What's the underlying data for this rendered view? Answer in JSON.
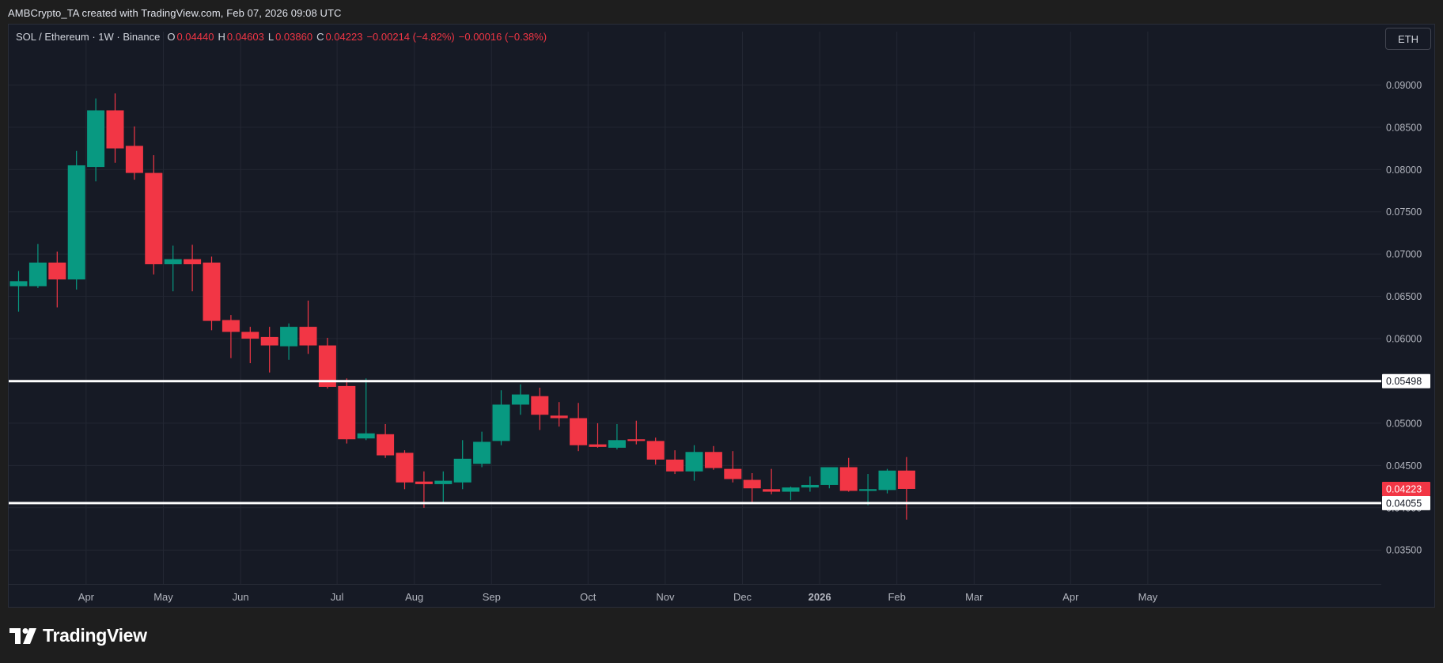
{
  "caption": "AMBCrypto_TA created with TradingView.com, Feb 07, 2026 09:08 UTC",
  "legend": {
    "symbol": "SOL / Ethereum · 1W · Binance",
    "open_label": "O",
    "open": "0.04440",
    "high_label": "H",
    "high": "0.04603",
    "low_label": "L",
    "low": "0.03860",
    "close_label": "C",
    "close": "0.04223",
    "change": "−0.00214 (−4.82%)",
    "change2": "−0.00016 (−0.38%)"
  },
  "currency_button": "ETH",
  "brand": "TradingView",
  "colors": {
    "background": "#161a25",
    "grid": "#232733",
    "up": "#089981",
    "down": "#f23645",
    "level_line": "#ffffff",
    "axis_text": "#b2b5be"
  },
  "chart_data": {
    "type": "candlestick",
    "interval": "1W",
    "ylim": [
      0.031,
      0.0935
    ],
    "y_ticks": [
      "0.03500",
      "0.04000",
      "0.04500",
      "0.05000",
      "0.05500",
      "0.06000",
      "0.06500",
      "0.07000",
      "0.07500",
      "0.08000",
      "0.08500",
      "0.09000"
    ],
    "y_tick_values": [
      0.035,
      0.04,
      0.045,
      0.05,
      0.055,
      0.06,
      0.065,
      0.07,
      0.075,
      0.08,
      0.085,
      0.09
    ],
    "x_ticks": [
      {
        "label": "Apr",
        "index": 3.5
      },
      {
        "label": "May",
        "index": 7.5
      },
      {
        "label": "Jun",
        "index": 11.5
      },
      {
        "label": "Jul",
        "index": 16.5
      },
      {
        "label": "Aug",
        "index": 20.5
      },
      {
        "label": "Sep",
        "index": 24.5
      },
      {
        "label": "Oct",
        "index": 29.5
      },
      {
        "label": "Nov",
        "index": 33.5
      },
      {
        "label": "Dec",
        "index": 37.5
      },
      {
        "label": "2026",
        "index": 41.5,
        "bold": true
      },
      {
        "label": "Feb",
        "index": 45.5
      },
      {
        "label": "Mar",
        "index": 49.5
      },
      {
        "label": "Apr",
        "index": 54.5
      },
      {
        "label": "May",
        "index": 58.5
      }
    ],
    "horizontal_levels": [
      {
        "value": 0.05498,
        "label": "0.05498"
      },
      {
        "value": 0.04055,
        "label": "0.04055"
      }
    ],
    "last_price": {
      "value": 0.04223,
      "label": "0.04223"
    },
    "candles": [
      {
        "o": 0.0662,
        "h": 0.068,
        "l": 0.0632,
        "c": 0.0668
      },
      {
        "o": 0.0662,
        "h": 0.0712,
        "l": 0.066,
        "c": 0.069
      },
      {
        "o": 0.069,
        "h": 0.0703,
        "l": 0.0637,
        "c": 0.067
      },
      {
        "o": 0.067,
        "h": 0.0822,
        "l": 0.0658,
        "c": 0.0805
      },
      {
        "o": 0.0803,
        "h": 0.0884,
        "l": 0.0786,
        "c": 0.087
      },
      {
        "o": 0.087,
        "h": 0.089,
        "l": 0.0808,
        "c": 0.0825
      },
      {
        "o": 0.0828,
        "h": 0.0851,
        "l": 0.0788,
        "c": 0.0796
      },
      {
        "o": 0.0796,
        "h": 0.0817,
        "l": 0.0676,
        "c": 0.0688
      },
      {
        "o": 0.0688,
        "h": 0.071,
        "l": 0.0656,
        "c": 0.0694
      },
      {
        "o": 0.0694,
        "h": 0.0711,
        "l": 0.0656,
        "c": 0.0688
      },
      {
        "o": 0.069,
        "h": 0.0697,
        "l": 0.061,
        "c": 0.0621
      },
      {
        "o": 0.0622,
        "h": 0.0628,
        "l": 0.0577,
        "c": 0.0608
      },
      {
        "o": 0.0608,
        "h": 0.0614,
        "l": 0.0571,
        "c": 0.06
      },
      {
        "o": 0.0602,
        "h": 0.0614,
        "l": 0.056,
        "c": 0.0592
      },
      {
        "o": 0.0591,
        "h": 0.0618,
        "l": 0.0575,
        "c": 0.0614
      },
      {
        "o": 0.0614,
        "h": 0.0645,
        "l": 0.0582,
        "c": 0.0592
      },
      {
        "o": 0.0592,
        "h": 0.0601,
        "l": 0.0541,
        "c": 0.0543
      },
      {
        "o": 0.0544,
        "h": 0.0553,
        "l": 0.0476,
        "c": 0.0481
      },
      {
        "o": 0.0482,
        "h": 0.0553,
        "l": 0.048,
        "c": 0.0488
      },
      {
        "o": 0.0487,
        "h": 0.0499,
        "l": 0.0459,
        "c": 0.0462
      },
      {
        "o": 0.0465,
        "h": 0.0468,
        "l": 0.0422,
        "c": 0.043
      },
      {
        "o": 0.0431,
        "h": 0.0443,
        "l": 0.04,
        "c": 0.0428
      },
      {
        "o": 0.0428,
        "h": 0.0443,
        "l": 0.0405,
        "c": 0.0432
      },
      {
        "o": 0.043,
        "h": 0.048,
        "l": 0.0422,
        "c": 0.0458
      },
      {
        "o": 0.0452,
        "h": 0.049,
        "l": 0.0448,
        "c": 0.0478
      },
      {
        "o": 0.0479,
        "h": 0.0539,
        "l": 0.0474,
        "c": 0.0522
      },
      {
        "o": 0.0522,
        "h": 0.0546,
        "l": 0.051,
        "c": 0.0534
      },
      {
        "o": 0.0532,
        "h": 0.0542,
        "l": 0.0492,
        "c": 0.051
      },
      {
        "o": 0.0509,
        "h": 0.0525,
        "l": 0.0496,
        "c": 0.0506
      },
      {
        "o": 0.0506,
        "h": 0.0524,
        "l": 0.0467,
        "c": 0.0474
      },
      {
        "o": 0.0475,
        "h": 0.05,
        "l": 0.0471,
        "c": 0.0472
      },
      {
        "o": 0.0471,
        "h": 0.0499,
        "l": 0.0469,
        "c": 0.048
      },
      {
        "o": 0.0481,
        "h": 0.0503,
        "l": 0.0475,
        "c": 0.0479
      },
      {
        "o": 0.0479,
        "h": 0.0483,
        "l": 0.0451,
        "c": 0.0457
      },
      {
        "o": 0.0457,
        "h": 0.0468,
        "l": 0.044,
        "c": 0.0443
      },
      {
        "o": 0.0443,
        "h": 0.0474,
        "l": 0.0432,
        "c": 0.0466
      },
      {
        "o": 0.0466,
        "h": 0.0473,
        "l": 0.0445,
        "c": 0.0447
      },
      {
        "o": 0.0446,
        "h": 0.0467,
        "l": 0.043,
        "c": 0.0434
      },
      {
        "o": 0.0433,
        "h": 0.0441,
        "l": 0.0405,
        "c": 0.0423
      },
      {
        "o": 0.0422,
        "h": 0.0446,
        "l": 0.0416,
        "c": 0.0419
      },
      {
        "o": 0.0419,
        "h": 0.0425,
        "l": 0.0409,
        "c": 0.0424
      },
      {
        "o": 0.0424,
        "h": 0.0437,
        "l": 0.0419,
        "c": 0.0427
      },
      {
        "o": 0.0427,
        "h": 0.0448,
        "l": 0.0423,
        "c": 0.0448
      },
      {
        "o": 0.0448,
        "h": 0.0459,
        "l": 0.0419,
        "c": 0.042
      },
      {
        "o": 0.042,
        "h": 0.044,
        "l": 0.0403,
        "c": 0.0422
      },
      {
        "o": 0.0421,
        "h": 0.0446,
        "l": 0.0417,
        "c": 0.0444
      },
      {
        "o": 0.0444,
        "h": 0.046,
        "l": 0.0386,
        "c": 0.04223
      }
    ]
  }
}
